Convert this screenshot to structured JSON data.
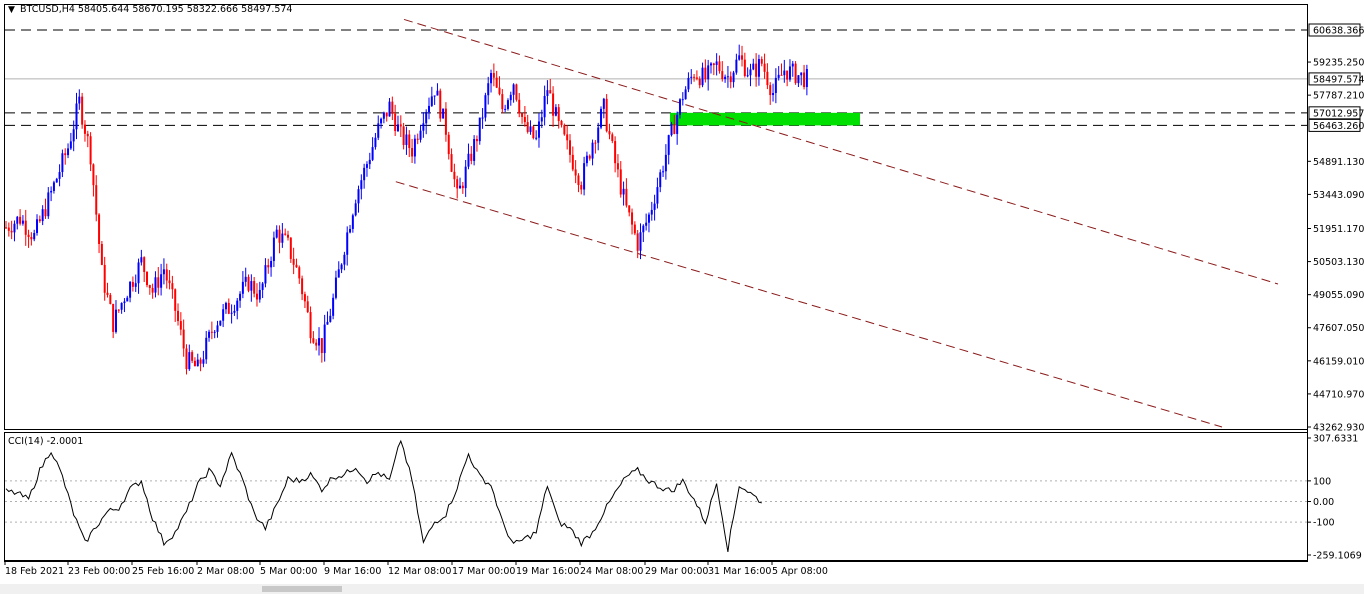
{
  "header": {
    "symbol": "BTCUSD,H4",
    "open": "58405.644",
    "high": "58670.195",
    "low": "58322.666",
    "close": "58497.574"
  },
  "indicator": {
    "label": "CCI(14) -2.0001",
    "ticks": [
      "307.6331",
      "100",
      "0.00",
      "-100",
      "-259.1069"
    ]
  },
  "price_tags": {
    "resistance": "60638.366",
    "current": "58497.574",
    "support_top": "57012.957",
    "support_bottom": "56463.260"
  },
  "chart_data": {
    "type": "candlestick",
    "symbol": "BTCUSD",
    "timeframe": "H4",
    "y_axis_ticks": [
      "59235.250",
      "57787.210",
      "54891.130",
      "53443.090",
      "51951.170",
      "50503.130",
      "49055.090",
      "47607.050",
      "46159.010",
      "44710.970",
      "43262.930"
    ],
    "x_axis_labels": [
      "18 Feb 2021",
      "23 Feb 00:00",
      "25 Feb 16:00",
      "2 Mar 08:00",
      "5 Mar 00:00",
      "9 Mar 16:00",
      "12 Mar 08:00",
      "17 Mar 00:00",
      "19 Mar 16:00",
      "24 Mar 08:00",
      "29 Mar 00:00",
      "31 Mar 16:00",
      "5 Apr 08:00"
    ],
    "ylim": [
      43262.93,
      61300
    ],
    "horizontal_levels": [
      60638.366,
      57012.957,
      56463.26
    ],
    "current_price": 58497.574,
    "support_zone": [
      56463.26,
      57012.957
    ],
    "close_path": [
      [
        0,
        52000
      ],
      [
        5,
        52400
      ],
      [
        10,
        51600
      ],
      [
        16,
        53500
      ],
      [
        22,
        55500
      ],
      [
        26,
        57500
      ],
      [
        30,
        55200
      ],
      [
        34,
        50000
      ],
      [
        38,
        47800
      ],
      [
        42,
        49000
      ],
      [
        48,
        50500
      ],
      [
        52,
        49200
      ],
      [
        56,
        50200
      ],
      [
        60,
        48400
      ],
      [
        64,
        46200
      ],
      [
        68,
        45800
      ],
      [
        74,
        47800
      ],
      [
        80,
        48600
      ],
      [
        86,
        49600
      ],
      [
        90,
        49000
      ],
      [
        96,
        51800
      ],
      [
        100,
        51200
      ],
      [
        104,
        49800
      ],
      [
        108,
        47600
      ],
      [
        112,
        46800
      ],
      [
        116,
        48800
      ],
      [
        120,
        51200
      ],
      [
        124,
        53400
      ],
      [
        128,
        54800
      ],
      [
        132,
        56300
      ],
      [
        136,
        57300
      ],
      [
        140,
        56000
      ],
      [
        144,
        55400
      ],
      [
        148,
        57000
      ],
      [
        152,
        58100
      ],
      [
        156,
        56300
      ],
      [
        160,
        53300
      ],
      [
        164,
        54800
      ],
      [
        168,
        56400
      ],
      [
        172,
        58700
      ],
      [
        176,
        57200
      ],
      [
        180,
        58400
      ],
      [
        184,
        56300
      ],
      [
        188,
        55800
      ],
      [
        192,
        58100
      ],
      [
        196,
        56400
      ],
      [
        200,
        55200
      ],
      [
        204,
        54000
      ],
      [
        208,
        55800
      ],
      [
        212,
        57200
      ],
      [
        216,
        54800
      ],
      [
        220,
        52800
      ],
      [
        224,
        51300
      ],
      [
        228,
        52500
      ],
      [
        232,
        54300
      ],
      [
        236,
        56100
      ],
      [
        240,
        57800
      ],
      [
        244,
        58800
      ],
      [
        248,
        58500
      ],
      [
        252,
        59100
      ],
      [
        256,
        58600
      ],
      [
        260,
        59400
      ],
      [
        264,
        58700
      ],
      [
        268,
        59200
      ],
      [
        272,
        57900
      ],
      [
        276,
        58900
      ],
      [
        280,
        58700
      ],
      [
        284,
        58500
      ]
    ],
    "candle_count": 285,
    "cci": {
      "period": 14,
      "current": -2.0001,
      "ylim": [
        -259.1069,
        307.6331
      ],
      "path": [
        [
          0,
          50
        ],
        [
          4,
          40
        ],
        [
          8,
          10
        ],
        [
          12,
          150
        ],
        [
          16,
          250
        ],
        [
          20,
          120
        ],
        [
          24,
          -60
        ],
        [
          28,
          -200
        ],
        [
          32,
          -120
        ],
        [
          36,
          -50
        ],
        [
          40,
          -30
        ],
        [
          44,
          60
        ],
        [
          48,
          100
        ],
        [
          52,
          -80
        ],
        [
          56,
          -200
        ],
        [
          60,
          -150
        ],
        [
          64,
          -50
        ],
        [
          68,
          80
        ],
        [
          72,
          150
        ],
        [
          76,
          80
        ],
        [
          80,
          230
        ],
        [
          84,
          100
        ],
        [
          88,
          -60
        ],
        [
          92,
          -130
        ],
        [
          96,
          -20
        ],
        [
          100,
          110
        ],
        [
          104,
          100
        ],
        [
          108,
          130
        ],
        [
          112,
          60
        ],
        [
          116,
          120
        ],
        [
          120,
          130
        ],
        [
          124,
          170
        ],
        [
          128,
          100
        ],
        [
          132,
          140
        ],
        [
          136,
          100
        ],
        [
          140,
          300
        ],
        [
          144,
          100
        ],
        [
          148,
          -200
        ],
        [
          152,
          -100
        ],
        [
          156,
          -60
        ],
        [
          160,
          70
        ],
        [
          164,
          230
        ],
        [
          168,
          120
        ],
        [
          172,
          80
        ],
        [
          176,
          -100
        ],
        [
          180,
          -210
        ],
        [
          184,
          -180
        ],
        [
          188,
          -150
        ],
        [
          192,
          80
        ],
        [
          196,
          -100
        ],
        [
          200,
          -130
        ],
        [
          204,
          -200
        ],
        [
          208,
          -150
        ],
        [
          212,
          -50
        ],
        [
          216,
          40
        ],
        [
          220,
          120
        ],
        [
          224,
          150
        ],
        [
          228,
          100
        ],
        [
          232,
          70
        ],
        [
          236,
          50
        ],
        [
          240,
          100
        ],
        [
          244,
          10
        ],
        [
          248,
          -100
        ],
        [
          252,
          90
        ],
        [
          256,
          -230
        ],
        [
          260,
          80
        ],
        [
          264,
          40
        ],
        [
          268,
          -2
        ]
      ]
    },
    "trendlines": [
      {
        "name": "channel-upper",
        "from": [
          150,
          61100
        ],
        "to": [
          284,
          49200
        ]
      },
      {
        "name": "channel-lower",
        "from": [
          140,
          54000
        ],
        "to": [
          284,
          43262.93
        ]
      }
    ]
  }
}
